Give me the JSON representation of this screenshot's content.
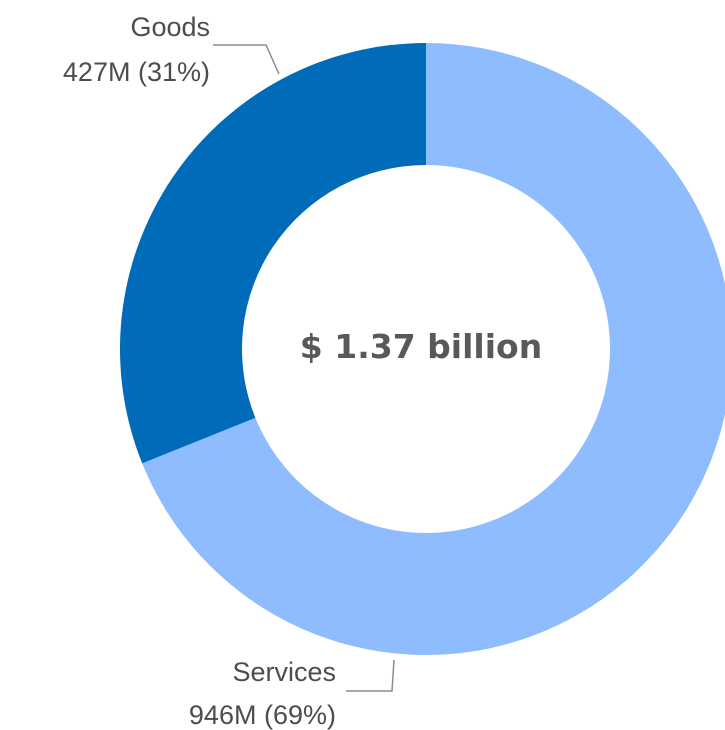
{
  "chart_data": {
    "type": "pie",
    "donut": true,
    "center_label": "$ 1.37 billion",
    "slices": [
      {
        "name": "Services",
        "value": 946,
        "value_label": "946M",
        "percent_label": "(69%)",
        "color": "#8fbcfe"
      },
      {
        "name": "Goods",
        "value": 427,
        "value_label": "427M",
        "percent_label": "(31%)",
        "color": "#006bb8"
      }
    ],
    "start_angle_deg": 0,
    "direction": "clockwise",
    "legend": "none"
  }
}
